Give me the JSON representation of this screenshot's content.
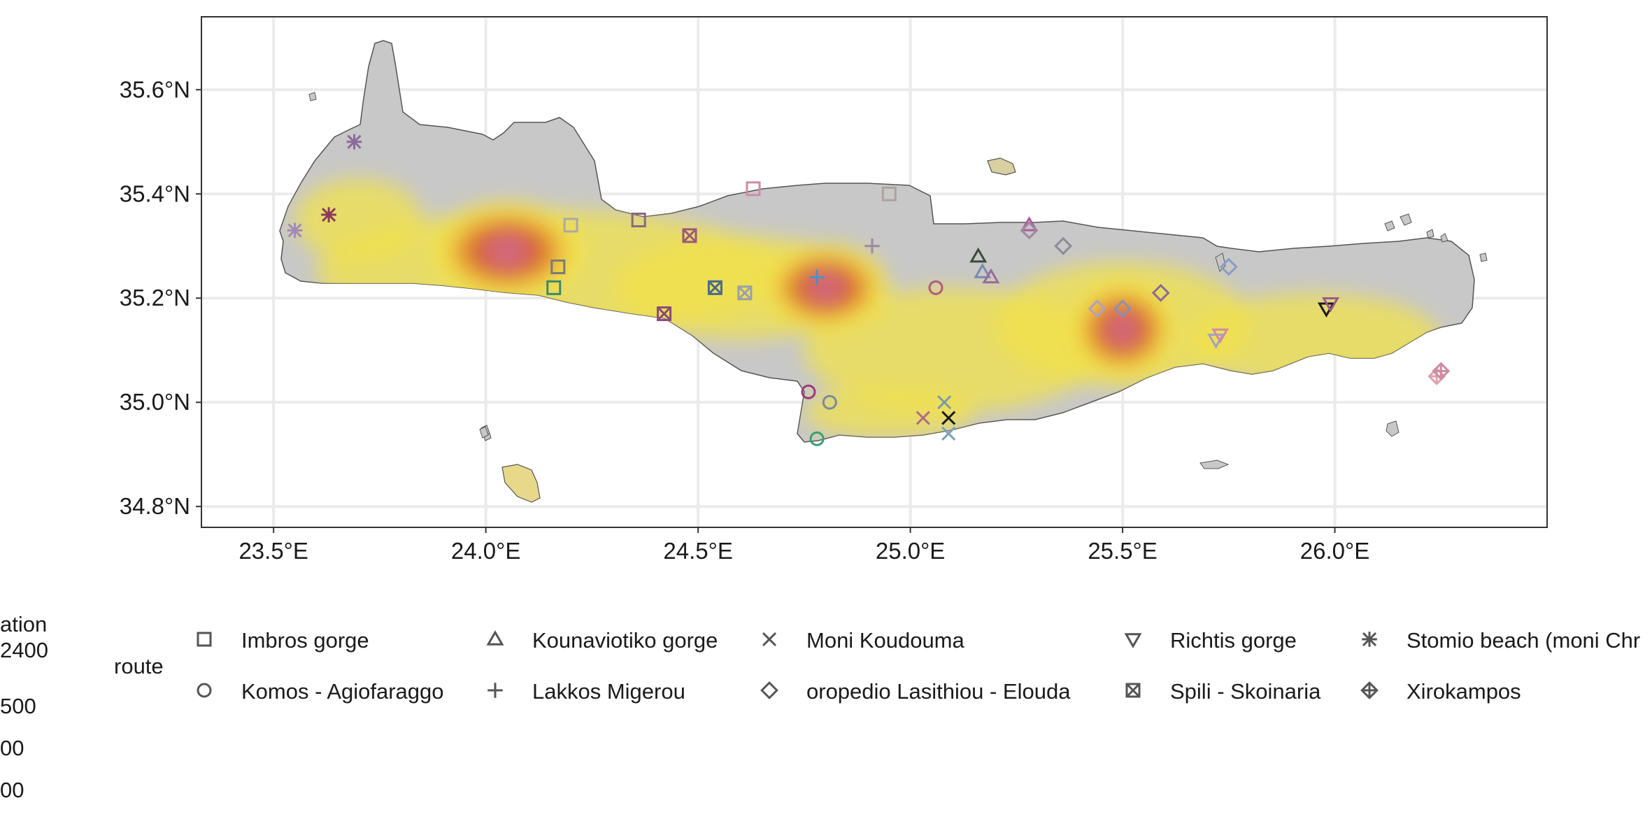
{
  "map": {
    "x_axis": {
      "labels": [
        "23.5°E",
        "24.0°E",
        "24.5°E",
        "25.0°E",
        "25.5°E",
        "26.0°E"
      ],
      "values": [
        23.5,
        24.0,
        24.5,
        25.0,
        25.5,
        26.0
      ],
      "range": [
        23.33,
        26.5
      ]
    },
    "y_axis": {
      "labels": [
        "34.8°N",
        "35.0°N",
        "35.2°N",
        "35.4°N",
        "35.6°N"
      ],
      "values": [
        34.8,
        35.0,
        35.2,
        35.4,
        35.6
      ],
      "range": [
        34.76,
        35.74
      ]
    },
    "grid": true,
    "land_color": "#c8c8c8",
    "colors": {
      "elev_low": "#f2e14a",
      "elev_mid": "#e8a33a",
      "elev_high": "#d45a2a",
      "elev_peak": "#d36a8a"
    },
    "massifs": [
      {
        "name_hidden": true,
        "lon": 24.05,
        "lat": 35.29,
        "rlon": 0.17,
        "rlat": 0.09,
        "level": 3
      },
      {
        "name_hidden": true,
        "lon": 24.8,
        "lat": 35.22,
        "rlon": 0.14,
        "rlat": 0.08,
        "level": 3
      },
      {
        "name_hidden": true,
        "lon": 25.5,
        "lat": 35.14,
        "rlon": 0.12,
        "rlat": 0.09,
        "level": 3
      }
    ]
  },
  "legend": {
    "elevation": {
      "title_visible": "ation",
      "label_top": "2400",
      "labels": [
        "500",
        "00",
        "00"
      ]
    },
    "route": {
      "title": "route",
      "items": [
        {
          "label": "Imbros gorge",
          "shape": "square-icon"
        },
        {
          "label": "Komos - Agiofaraggo",
          "shape": "circle-icon"
        },
        {
          "label": "Kounaviotiko gorge",
          "shape": "triangle-up-icon"
        },
        {
          "label": "Lakkos Migerou",
          "shape": "plus-icon"
        },
        {
          "label": "Moni Koudouma",
          "shape": "cross-icon"
        },
        {
          "label": "oropedio Lasithiou - Elouda",
          "shape": "diamond-icon"
        },
        {
          "label": "Richtis gorge",
          "shape": "triangle-down-icon"
        },
        {
          "label": "Spili - Skoinaria",
          "shape": "square-cross-icon"
        },
        {
          "label": "Stomio beach (moni Chr",
          "shape": "asterisk-icon"
        },
        {
          "label": "Xirokampos",
          "shape": "diamond-plus-icon"
        }
      ]
    }
  },
  "markers": [
    {
      "route": "Imbros gorge",
      "shape": "square-icon",
      "lon": 24.2,
      "lat": 35.34,
      "color": "#a9a9a9"
    },
    {
      "route": "Imbros gorge",
      "shape": "square-icon",
      "lon": 24.17,
      "lat": 35.26,
      "color": "#7a7a7a"
    },
    {
      "route": "Imbros gorge",
      "shape": "square-icon",
      "lon": 24.16,
      "lat": 35.22,
      "color": "#3a8a6a"
    },
    {
      "route": "Imbros gorge",
      "shape": "square-icon",
      "lon": 24.36,
      "lat": 35.35,
      "color": "#8a6a7a"
    },
    {
      "route": "Imbros gorge",
      "shape": "square-icon",
      "lon": 24.63,
      "lat": 35.41,
      "color": "#d08aa8"
    },
    {
      "route": "Imbros gorge",
      "shape": "square-icon",
      "lon": 24.95,
      "lat": 35.4,
      "color": "#b0a0a0"
    },
    {
      "route": "Komos - Agiofaraggo",
      "shape": "circle-icon",
      "lon": 24.76,
      "lat": 35.02,
      "color": "#9a3a7a"
    },
    {
      "route": "Komos - Agiofaraggo",
      "shape": "circle-icon",
      "lon": 24.81,
      "lat": 35.0,
      "color": "#7a8aa0"
    },
    {
      "route": "Komos - Agiofaraggo",
      "shape": "circle-icon",
      "lon": 24.78,
      "lat": 34.93,
      "color": "#3aa070"
    },
    {
      "route": "Komos - Agiofaraggo",
      "shape": "circle-icon",
      "lon": 25.06,
      "lat": 35.22,
      "color": "#b05a7a"
    },
    {
      "route": "Kounaviotiko gorge",
      "shape": "triangle-up-icon",
      "lon": 25.16,
      "lat": 35.28,
      "color": "#3a4a3a"
    },
    {
      "route": "Kounaviotiko gorge",
      "shape": "triangle-up-icon",
      "lon": 25.17,
      "lat": 35.25,
      "color": "#7a8ab0"
    },
    {
      "route": "Kounaviotiko gorge",
      "shape": "triangle-up-icon",
      "lon": 25.19,
      "lat": 35.24,
      "color": "#9a6a9a"
    },
    {
      "route": "Kounaviotiko gorge",
      "shape": "triangle-up-icon",
      "lon": 25.28,
      "lat": 35.34,
      "color": "#b05a9a"
    },
    {
      "route": "Lakkos Migerou",
      "shape": "plus-icon",
      "lon": 24.78,
      "lat": 35.24,
      "color": "#4a90c8"
    },
    {
      "route": "Lakkos Migerou",
      "shape": "plus-icon",
      "lon": 24.91,
      "lat": 35.3,
      "color": "#9a8aa0"
    },
    {
      "route": "Moni Koudouma",
      "shape": "cross-icon",
      "lon": 25.03,
      "lat": 34.97,
      "color": "#b06a8a"
    },
    {
      "route": "Moni Koudouma",
      "shape": "cross-icon",
      "lon": 25.08,
      "lat": 35.0,
      "color": "#7a9aa8"
    },
    {
      "route": "Moni Koudouma",
      "shape": "cross-icon",
      "lon": 25.09,
      "lat": 34.97,
      "color": "#1a1a1a"
    },
    {
      "route": "Moni Koudouma",
      "shape": "cross-icon",
      "lon": 25.09,
      "lat": 34.94,
      "color": "#7aa0b8"
    },
    {
      "route": "oropedio Lasithiou - Elouda",
      "shape": "diamond-icon",
      "lon": 25.28,
      "lat": 35.33,
      "color": "#9a8aa0"
    },
    {
      "route": "oropedio Lasithiou - Elouda",
      "shape": "diamond-icon",
      "lon": 25.36,
      "lat": 35.3,
      "color": "#8a8a9a"
    },
    {
      "route": "oropedio Lasithiou - Elouda",
      "shape": "diamond-icon",
      "lon": 25.44,
      "lat": 35.18,
      "color": "#b0a0c0"
    },
    {
      "route": "oropedio Lasithiou - Elouda",
      "shape": "diamond-icon",
      "lon": 25.5,
      "lat": 35.18,
      "color": "#8a90b0"
    },
    {
      "route": "oropedio Lasithiou - Elouda",
      "shape": "diamond-icon",
      "lon": 25.59,
      "lat": 35.21,
      "color": "#8a6a9a"
    },
    {
      "route": "oropedio Lasithiou - Elouda",
      "shape": "diamond-icon",
      "lon": 25.75,
      "lat": 35.26,
      "color": "#8a9ac8"
    },
    {
      "route": "Richtis gorge",
      "shape": "triangle-down-icon",
      "lon": 25.72,
      "lat": 35.12,
      "color": "#a0a0c8"
    },
    {
      "route": "Richtis gorge",
      "shape": "triangle-down-icon",
      "lon": 25.73,
      "lat": 35.13,
      "color": "#d08aa8"
    },
    {
      "route": "Richtis gorge",
      "shape": "triangle-down-icon",
      "lon": 25.98,
      "lat": 35.18,
      "color": "#1a1a1a"
    },
    {
      "route": "Richtis gorge",
      "shape": "triangle-down-icon",
      "lon": 25.99,
      "lat": 35.19,
      "color": "#9a5a8a"
    },
    {
      "route": "Spili - Skoinaria",
      "shape": "square-cross-icon",
      "lon": 24.42,
      "lat": 35.17,
      "color": "#8a4a7a"
    },
    {
      "route": "Spili - Skoinaria",
      "shape": "square-cross-icon",
      "lon": 24.48,
      "lat": 35.32,
      "color": "#9a5a7a"
    },
    {
      "route": "Spili - Skoinaria",
      "shape": "square-cross-icon",
      "lon": 24.54,
      "lat": 35.22,
      "color": "#4a6a90"
    },
    {
      "route": "Spili - Skoinaria",
      "shape": "square-cross-icon",
      "lon": 24.61,
      "lat": 35.21,
      "color": "#9aa0a8"
    },
    {
      "route": "Stomio beach (moni Chr",
      "shape": "asterisk-icon",
      "lon": 23.55,
      "lat": 35.33,
      "color": "#a08ab8"
    },
    {
      "route": "Stomio beach (moni Chr",
      "shape": "asterisk-icon",
      "lon": 23.63,
      "lat": 35.36,
      "color": "#8a3a5a"
    },
    {
      "route": "Stomio beach (moni Chr",
      "shape": "asterisk-icon",
      "lon": 23.69,
      "lat": 35.5,
      "color": "#8a6a9a"
    },
    {
      "route": "Xirokampos",
      "shape": "diamond-plus-icon",
      "lon": 26.24,
      "lat": 35.05,
      "color": "#e0a0b0"
    },
    {
      "route": "Xirokampos",
      "shape": "diamond-plus-icon",
      "lon": 26.25,
      "lat": 35.06,
      "color": "#d08aa0"
    }
  ]
}
